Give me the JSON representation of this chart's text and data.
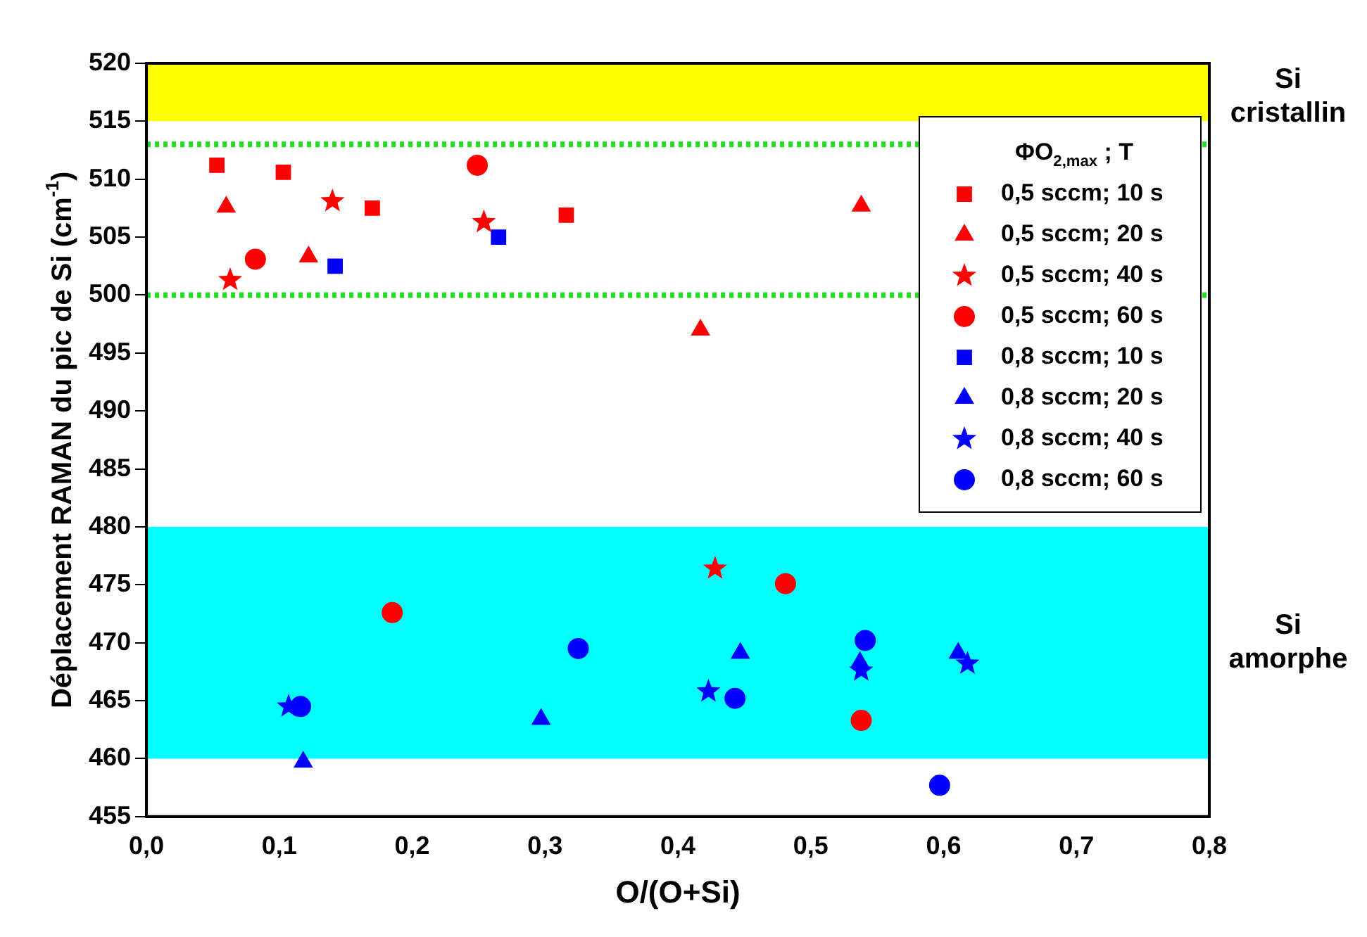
{
  "chart_data": {
    "type": "scatter",
    "xlabel": "O/(O+Si)",
    "ylabel": "Déplacement RAMAN du pic de Si (cm$^{-1}$)",
    "legend_title": "ΦO$_{2,max}$ ; T",
    "legend": "top right",
    "xlim": [
      0,
      0.8
    ],
    "xticks": [
      {
        "value": 0,
        "label": "0,0"
      },
      {
        "value": 0.1,
        "label": "0,1"
      },
      {
        "value": 0.2,
        "label": "0,2"
      },
      {
        "value": 0.3,
        "label": "0,3"
      },
      {
        "value": 0.4,
        "label": "0,4"
      },
      {
        "value": 0.5,
        "label": "0,5"
      },
      {
        "value": 0.6,
        "label": "0,6"
      },
      {
        "value": 0.7,
        "label": "0,7"
      },
      {
        "value": 0.8,
        "label": "0,8"
      }
    ],
    "ylim": [
      455,
      520
    ],
    "yticks": [
      455,
      460,
      465,
      470,
      475,
      480,
      485,
      490,
      495,
      500,
      505,
      510,
      515,
      520
    ],
    "grid": false,
    "bands": [
      {
        "axis": "y",
        "from": 515,
        "to": 520,
        "label": "Si cristallin",
        "color": "#ffff00"
      },
      {
        "axis": "y",
        "from": 460,
        "to": 480,
        "label": "Si amorphe",
        "color": "#00ffff"
      }
    ],
    "ref_lines": [
      {
        "axis": "y",
        "value": 513,
        "color": "#22dd22",
        "line_style": "dotted"
      },
      {
        "axis": "y",
        "value": 500,
        "color": "#22dd22",
        "line_style": "dotted"
      }
    ],
    "series": [
      {
        "name": "0,5 sccm; 10 s",
        "color": "#ff0000",
        "marker": "square",
        "x": [
          0.053,
          0.103,
          0.17,
          0.316
        ],
        "values": [
          511.2,
          510.6,
          507.5,
          506.9
        ]
      },
      {
        "name": "0,5 sccm; 20 s",
        "color": "#ff0000",
        "marker": "triangle",
        "x": [
          0.06,
          0.122,
          0.417,
          0.538
        ],
        "values": [
          507.6,
          503.3,
          497,
          507.7
        ]
      },
      {
        "name": "0,5 sccm; 40 s",
        "color": "#ff0000",
        "marker": "star",
        "x": [
          0.063,
          0.14,
          0.254,
          0.428
        ],
        "values": [
          501.3,
          508.1,
          506.3,
          476.4
        ]
      },
      {
        "name": "0,5 sccm; 60 s",
        "color": "#ff0000",
        "marker": "circle",
        "x": [
          0.082,
          0.249,
          0.185,
          0.481,
          0.538
        ],
        "values": [
          503.1,
          511.2,
          472.6,
          475.1,
          463.3
        ]
      },
      {
        "name": "0,8 sccm; 10 s",
        "color": "#0000ff",
        "marker": "square",
        "x": [
          0.142,
          0.265
        ],
        "values": [
          502.5,
          505
        ]
      },
      {
        "name": "0,8 sccm; 20 s",
        "color": "#0000ff",
        "marker": "triangle",
        "x": [
          0.118,
          0.297,
          0.447,
          0.537,
          0.611
        ],
        "values": [
          459.7,
          463.4,
          469.1,
          468.3,
          469.1
        ]
      },
      {
        "name": "0,8 sccm; 40 s",
        "color": "#0000ff",
        "marker": "star",
        "x": [
          0.107,
          0.423,
          0.538,
          0.618
        ],
        "values": [
          464.5,
          465.8,
          467.6,
          468.2
        ]
      },
      {
        "name": "0,8 sccm; 60 s",
        "color": "#0000ff",
        "marker": "circle",
        "x": [
          0.116,
          0.325,
          0.443,
          0.541,
          0.597
        ],
        "values": [
          464.5,
          469.5,
          465.2,
          470.2,
          457.7
        ]
      }
    ]
  }
}
